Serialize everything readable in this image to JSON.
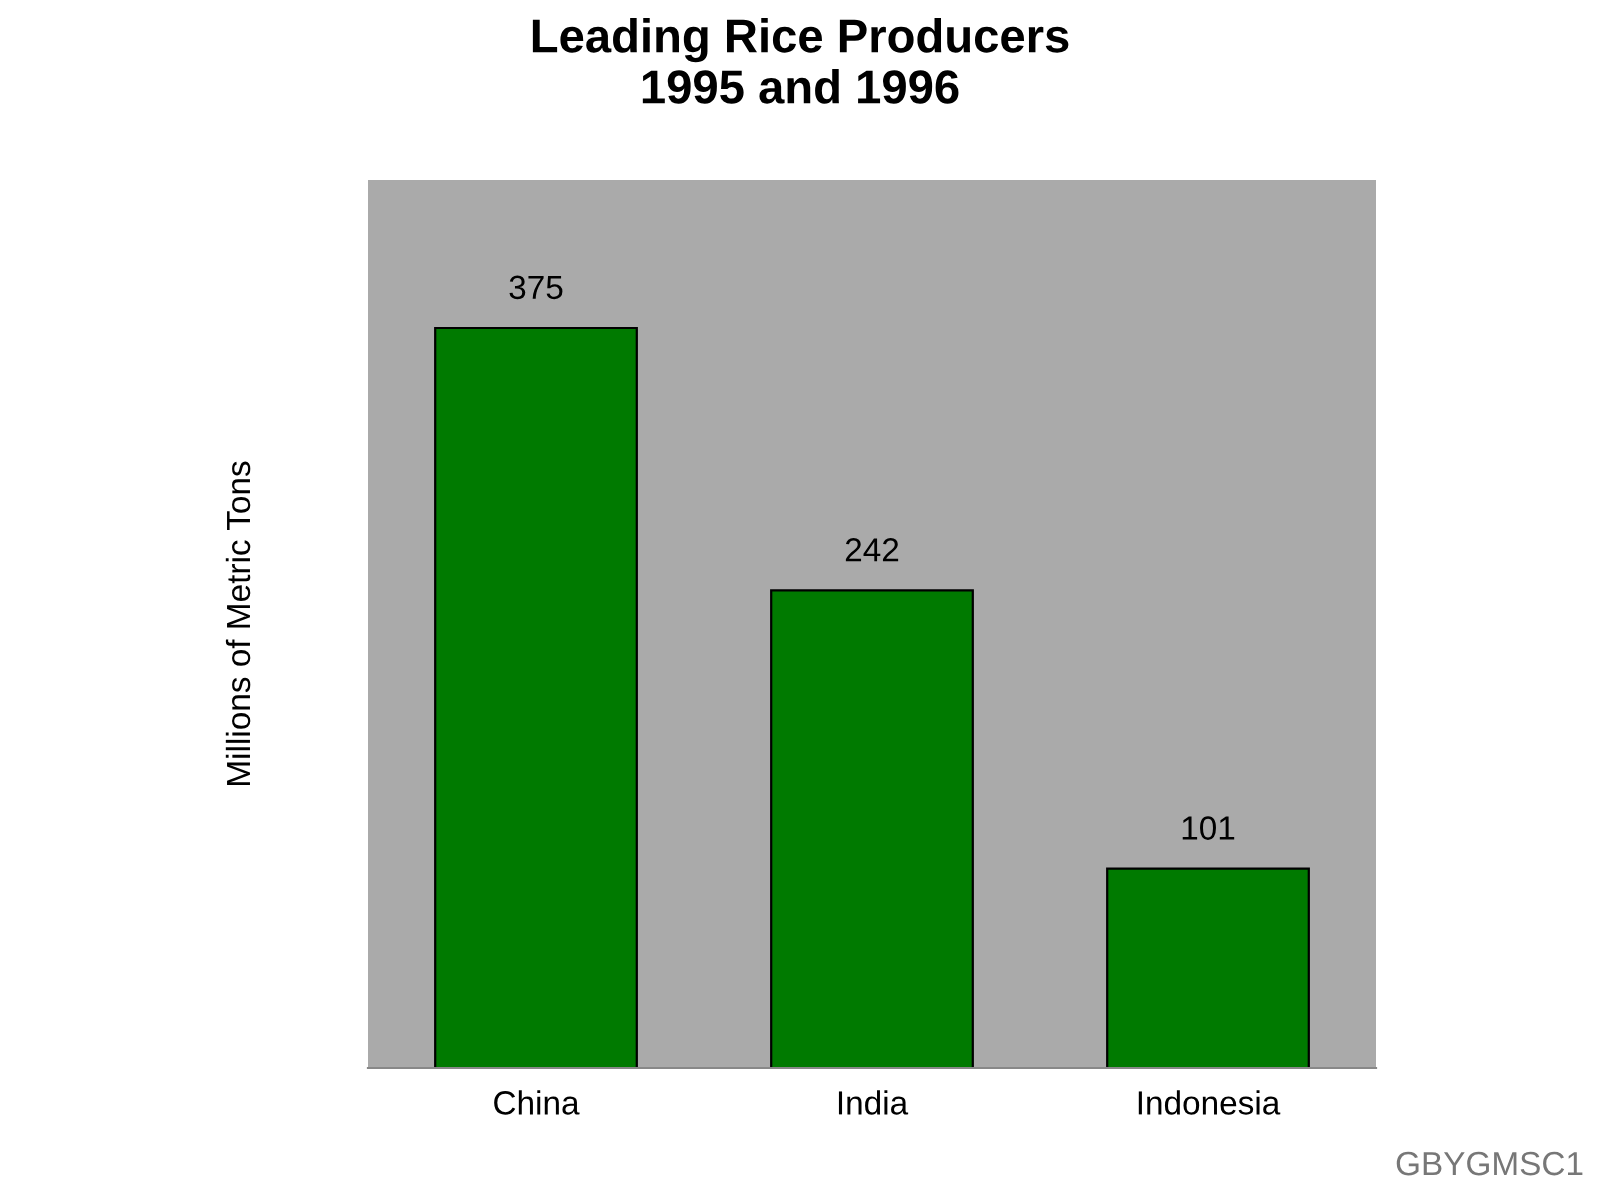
{
  "chart_data": {
    "type": "bar",
    "title": "Leading Rice Producers\n1995 and 1996",
    "ylabel": "Millions of Metric Tons",
    "categories": [
      "China",
      "India",
      "Indonesia"
    ],
    "values": [
      375,
      242,
      101
    ],
    "color": "#007a00",
    "data_labels": true,
    "tick_labels": "x",
    "grid": false,
    "annotations": [
      "GBYGMSC1"
    ]
  }
}
